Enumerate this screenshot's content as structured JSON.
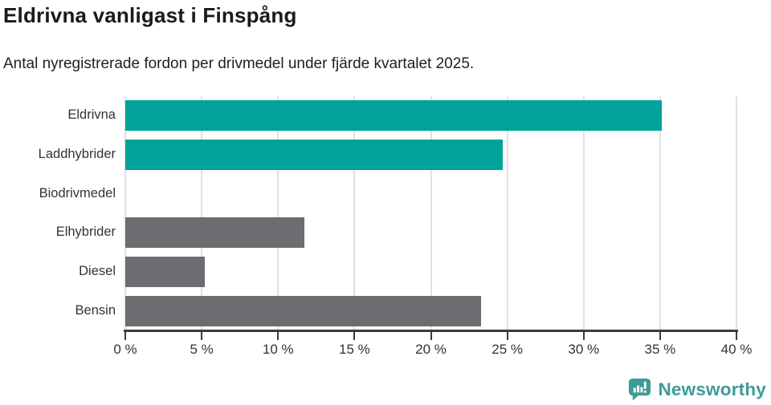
{
  "header": {
    "title": "Eldrivna vanligast i Finspång",
    "subtitle": "Antal nyregistrerade fordon per drivmedel under fjärde kvartalet 2025."
  },
  "chart_data": {
    "type": "bar",
    "orientation": "horizontal",
    "title": "Eldrivna vanligast i Finspång",
    "subtitle": "Antal nyregistrerade fordon per drivmedel under fjärde kvartalet 2025.",
    "categories": [
      "Eldrivna",
      "Laddhybrider",
      "Biodrivmedel",
      "Elhybrider",
      "Diesel",
      "Bensin"
    ],
    "values": [
      35.1,
      24.7,
      0,
      11.7,
      5.2,
      23.3
    ],
    "unit": "%",
    "bar_colors": [
      "#00a29a",
      "#00a29a",
      "#6c6c71",
      "#6c6c71",
      "#6c6c71",
      "#6c6c71"
    ],
    "highlight_color": "#00a29a",
    "default_color": "#6c6c71",
    "xlim": [
      0,
      40
    ],
    "x_ticks": [
      0,
      5,
      10,
      15,
      20,
      25,
      30,
      35,
      40
    ],
    "x_tick_labels": [
      "0 %",
      "5 %",
      "10 %",
      "15 %",
      "20 %",
      "25 %",
      "30 %",
      "35 %",
      "40 %"
    ],
    "xlabel": "",
    "ylabel": "",
    "grid": true,
    "gridline_color": "#e1e1e1",
    "axis_color": "#3c3c3c",
    "legend": false
  },
  "footer": {
    "brand": "Newsworthy",
    "brand_color": "#3d9b95",
    "logo_icon": "newsworthy-chart-bubble-icon"
  }
}
